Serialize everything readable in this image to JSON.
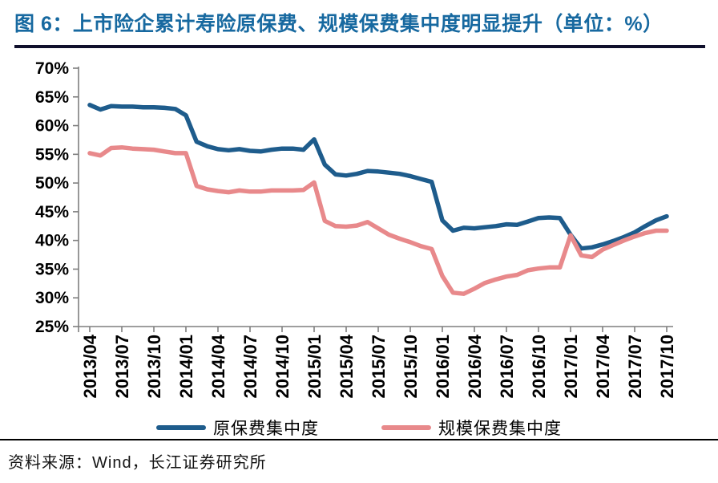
{
  "header": {
    "title": "图 6：上市险企累计寿险原保费、规模保费集中度明显提升（单位：%）",
    "title_color": "#1769A0",
    "title_rule_color": "#10102c"
  },
  "footer": {
    "source": "资料来源：Wind，长江证券研究所",
    "rule_color": "#000000"
  },
  "chart_data": {
    "type": "line",
    "title": "",
    "xlabel": "",
    "ylabel": "",
    "unit": "%",
    "ylim": [
      25,
      70
    ],
    "ytick_step": 5,
    "ytick_suffix": "%",
    "x_tick_every": 3,
    "grid": false,
    "legend_position": "bottom",
    "axis_color": "#7f7f7f",
    "x": [
      "2013/04",
      "2013/05",
      "2013/06",
      "2013/07",
      "2013/08",
      "2013/09",
      "2013/10",
      "2013/11",
      "2013/12",
      "2014/01",
      "2014/02",
      "2014/03",
      "2014/04",
      "2014/05",
      "2014/06",
      "2014/07",
      "2014/08",
      "2014/09",
      "2014/10",
      "2014/11",
      "2014/12",
      "2015/01",
      "2015/02",
      "2015/03",
      "2015/04",
      "2015/05",
      "2015/06",
      "2015/07",
      "2015/08",
      "2015/09",
      "2015/10",
      "2015/11",
      "2015/12",
      "2016/01",
      "2016/02",
      "2016/03",
      "2016/04",
      "2016/05",
      "2016/06",
      "2016/07",
      "2016/08",
      "2016/09",
      "2016/10",
      "2016/11",
      "2016/12",
      "2017/01",
      "2017/02",
      "2017/03",
      "2017/04",
      "2017/05",
      "2017/06",
      "2017/07",
      "2017/08",
      "2017/09",
      "2017/10"
    ],
    "series": [
      {
        "name": "原保费集中度",
        "color": "#1E5C8C",
        "values": [
          63.6,
          62.8,
          63.4,
          63.3,
          63.3,
          63.2,
          63.2,
          63.1,
          62.9,
          61.8,
          57.2,
          56.4,
          55.9,
          55.7,
          55.9,
          55.6,
          55.5,
          55.8,
          56.0,
          56.0,
          55.8,
          57.6,
          53.2,
          51.5,
          51.3,
          51.6,
          52.1,
          52.0,
          51.8,
          51.6,
          51.2,
          50.7,
          50.2,
          43.5,
          41.7,
          42.2,
          42.1,
          42.3,
          42.5,
          42.8,
          42.7,
          43.3,
          43.9,
          44.0,
          43.9,
          41.0,
          38.6,
          38.8,
          39.3,
          39.9,
          40.6,
          41.4,
          42.5,
          43.5,
          44.2
        ]
      },
      {
        "name": "规模保费集中度",
        "color": "#E8898B",
        "values": [
          55.2,
          54.8,
          56.1,
          56.2,
          56.0,
          55.9,
          55.8,
          55.5,
          55.2,
          55.2,
          49.5,
          48.9,
          48.6,
          48.4,
          48.7,
          48.5,
          48.5,
          48.7,
          48.7,
          48.7,
          48.8,
          50.1,
          43.4,
          42.5,
          42.4,
          42.6,
          43.2,
          42.1,
          41.0,
          40.3,
          39.7,
          39.0,
          38.5,
          33.8,
          30.9,
          30.7,
          31.6,
          32.6,
          33.2,
          33.7,
          34.0,
          34.8,
          35.1,
          35.3,
          35.3,
          40.9,
          37.4,
          37.1,
          38.4,
          39.2,
          40.0,
          40.7,
          41.3,
          41.7,
          41.7
        ]
      }
    ]
  }
}
